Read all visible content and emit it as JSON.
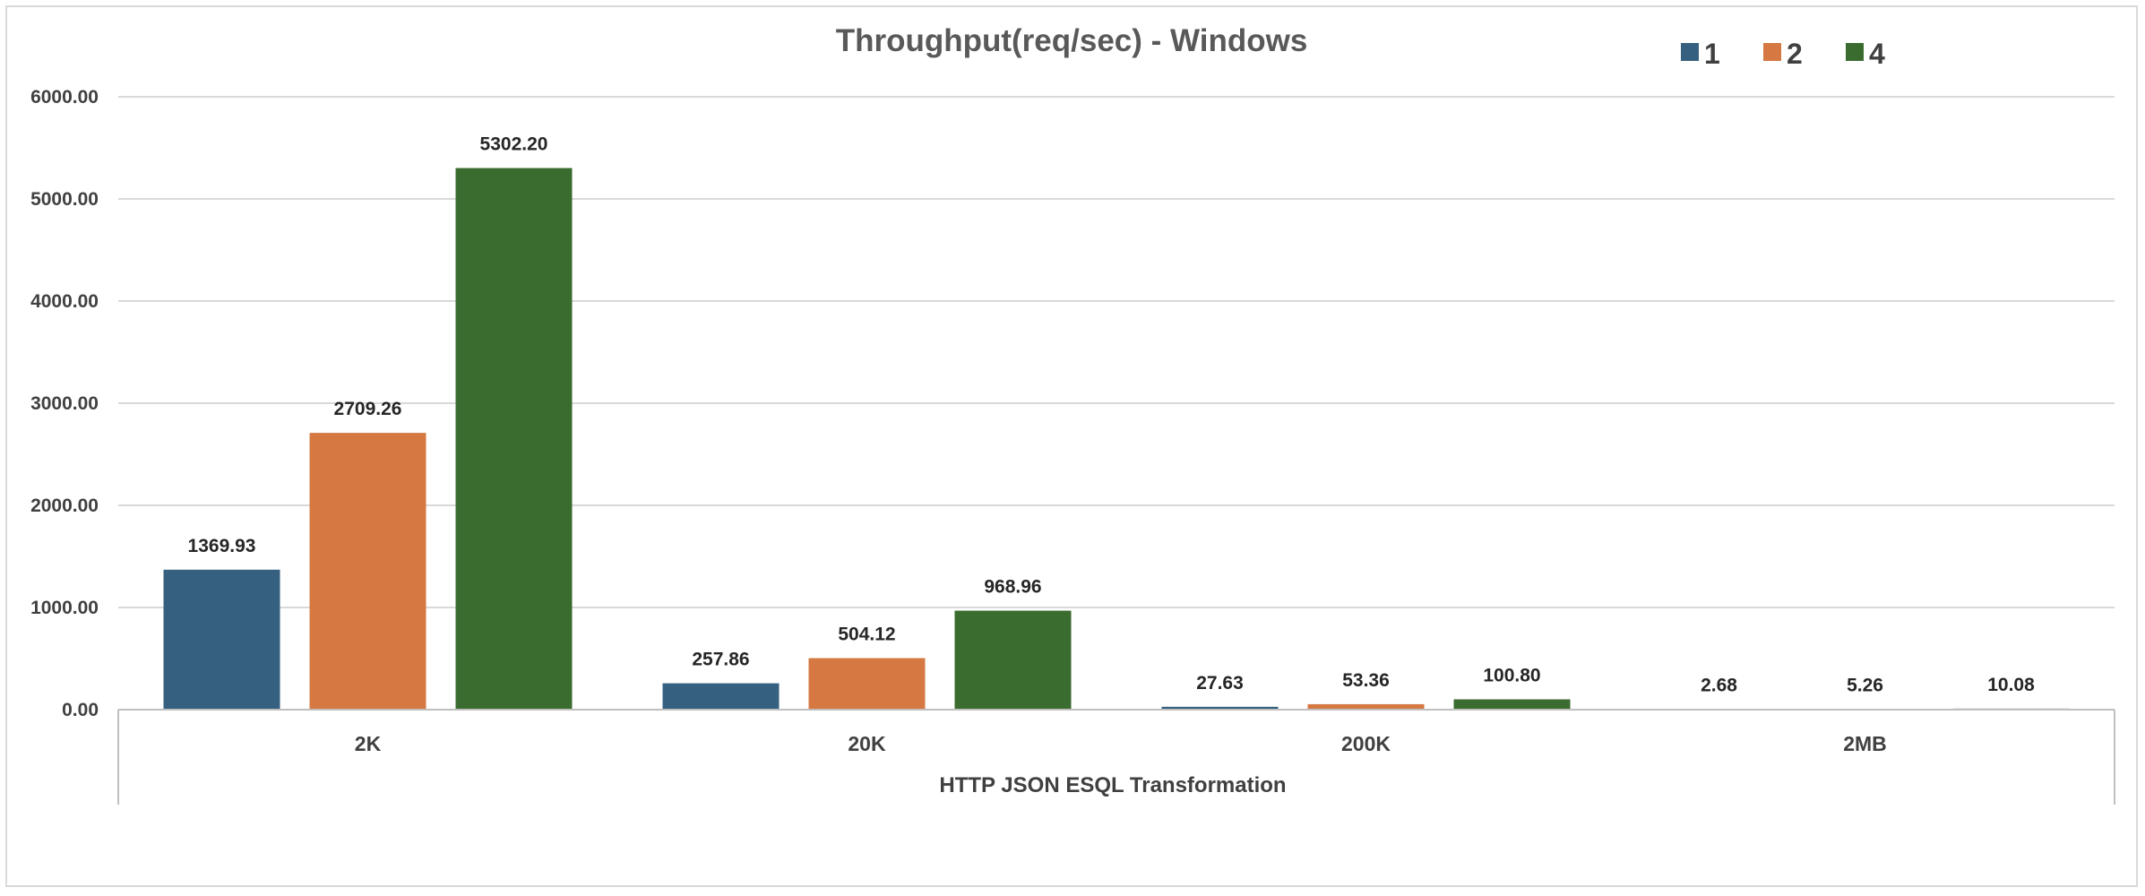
{
  "chart_data": {
    "type": "bar",
    "title": "Throughput(req/sec) - Windows",
    "xlabel": "HTTP JSON ESQL Transformation",
    "ylabel": "",
    "categories": [
      "2K",
      "20K",
      "200K",
      "2MB"
    ],
    "series": [
      {
        "name": "1",
        "color": "#35607f",
        "values": [
          1369.93,
          257.86,
          27.63,
          2.68
        ],
        "labels": [
          "1369.93",
          "257.86",
          "27.63",
          "2.68"
        ]
      },
      {
        "name": "2",
        "color": "#d57841",
        "values": [
          2709.26,
          504.12,
          53.36,
          5.26
        ],
        "labels": [
          "2709.26",
          "504.12",
          "53.36",
          "5.26"
        ]
      },
      {
        "name": "4",
        "color": "#3a6b2f",
        "values": [
          5302.2,
          968.96,
          100.8,
          10.08
        ],
        "labels": [
          "5302.20",
          "968.96",
          "100.80",
          "10.08"
        ]
      }
    ],
    "ylim": [
      0,
      6000
    ],
    "yticks": [
      0,
      1000,
      2000,
      3000,
      4000,
      5000,
      6000
    ],
    "ytick_labels": [
      "0.00",
      "1000.00",
      "2000.00",
      "3000.00",
      "4000.00",
      "5000.00",
      "6000.00"
    ],
    "grid": true,
    "legend_position": "top-right"
  }
}
